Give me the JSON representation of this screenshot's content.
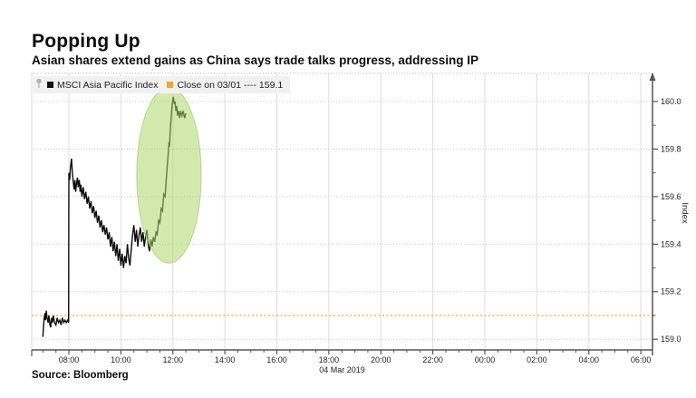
{
  "header": {
    "title": "Popping Up",
    "subtitle": "Asian shares extend gains as China says trade talks progress, addressing IP"
  },
  "legend": {
    "position": "top-left",
    "items": [
      {
        "icon": "pin-icon",
        "marker_color": "#111111",
        "label": "MSCI Asia Pacific Index"
      },
      {
        "marker_color": "#f5a623",
        "label": "Close on 03/01 ---- 159.1"
      }
    ]
  },
  "source": {
    "label": "Source: Bloomberg"
  },
  "chart_data": {
    "type": "line",
    "title": "Popping Up",
    "subtitle": "Asian shares extend gains as China says trade talks progress, addressing IP",
    "xlabel": "",
    "ylabel": "Index",
    "grid": true,
    "legend_position": "top-left",
    "x_axis": {
      "unit": "time",
      "range_hours": [
        6.57,
        30.45
      ],
      "minor_interval_hours": 0.5,
      "date_label": "04 Mar 2019",
      "ticks": [
        {
          "hour": 8,
          "label": "08:00"
        },
        {
          "hour": 10,
          "label": "10:00"
        },
        {
          "hour": 12,
          "label": "12:00"
        },
        {
          "hour": 14,
          "label": "14:00"
        },
        {
          "hour": 16,
          "label": "16:00"
        },
        {
          "hour": 18,
          "label": "18:00"
        },
        {
          "hour": 20,
          "label": "20:00"
        },
        {
          "hour": 22,
          "label": "22:00"
        },
        {
          "hour": 24,
          "label": "00:00"
        },
        {
          "hour": 26,
          "label": "02:00"
        },
        {
          "hour": 28,
          "label": "04:00"
        },
        {
          "hour": 30,
          "label": "06:00"
        }
      ]
    },
    "y_axis": {
      "label": "Index",
      "side": "right",
      "range": [
        158.955,
        160.118
      ],
      "minor_interval": 0.1,
      "ticks": [
        {
          "value": 159.0,
          "label": "159.0"
        },
        {
          "value": 159.2,
          "label": "159.2"
        },
        {
          "value": 159.4,
          "label": "159.4"
        },
        {
          "value": 159.6,
          "label": "159.6"
        },
        {
          "value": 159.8,
          "label": "159.8"
        },
        {
          "value": 160.0,
          "label": "160.0"
        }
      ]
    },
    "reference_line": {
      "label": "Close on 03/01",
      "value": 159.1,
      "color": "#f5a623",
      "style": "dotted"
    },
    "highlight_ellipse": {
      "center_hour": 11.85,
      "center_value": 159.69,
      "rx_hours": 1.24,
      "ry_value": 0.37,
      "fill": "#aed86e",
      "fill_opacity": 0.55,
      "stroke": "#8fc457"
    },
    "series": [
      {
        "name": "MSCI Asia Pacific Index",
        "color": "#0d0d0d",
        "points": [
          [
            7.0,
            159.01
          ],
          [
            7.02,
            159.05
          ],
          [
            7.05,
            159.09
          ],
          [
            7.08,
            159.11
          ],
          [
            7.1,
            159.08
          ],
          [
            7.13,
            159.12
          ],
          [
            7.16,
            159.09
          ],
          [
            7.2,
            159.07
          ],
          [
            7.23,
            159.1
          ],
          [
            7.27,
            159.06
          ],
          [
            7.3,
            159.05
          ],
          [
            7.33,
            159.09
          ],
          [
            7.37,
            159.07
          ],
          [
            7.4,
            159.1
          ],
          [
            7.45,
            159.07
          ],
          [
            7.5,
            159.06
          ],
          [
            7.55,
            159.09
          ],
          [
            7.6,
            159.07
          ],
          [
            7.65,
            159.08
          ],
          [
            7.7,
            159.06
          ],
          [
            7.75,
            159.09
          ],
          [
            7.8,
            159.07
          ],
          [
            7.85,
            159.08
          ],
          [
            7.9,
            159.07
          ],
          [
            7.95,
            159.08
          ],
          [
            7.99,
            159.07
          ],
          [
            8.0,
            159.7
          ],
          [
            8.03,
            159.67
          ],
          [
            8.06,
            159.72
          ],
          [
            8.1,
            159.76
          ],
          [
            8.13,
            159.71
          ],
          [
            8.16,
            159.67
          ],
          [
            8.2,
            159.63
          ],
          [
            8.23,
            159.67
          ],
          [
            8.26,
            159.62
          ],
          [
            8.3,
            159.66
          ],
          [
            8.33,
            159.68
          ],
          [
            8.36,
            159.64
          ],
          [
            8.4,
            159.67
          ],
          [
            8.43,
            159.62
          ],
          [
            8.46,
            159.65
          ],
          [
            8.5,
            159.6
          ],
          [
            8.55,
            159.64
          ],
          [
            8.6,
            159.59
          ],
          [
            8.65,
            159.62
          ],
          [
            8.7,
            159.57
          ],
          [
            8.75,
            159.6
          ],
          [
            8.8,
            159.55
          ],
          [
            8.85,
            159.58
          ],
          [
            8.9,
            159.53
          ],
          [
            8.95,
            159.56
          ],
          [
            9.0,
            159.51
          ],
          [
            9.05,
            159.54
          ],
          [
            9.1,
            159.49
          ],
          [
            9.15,
            159.52
          ],
          [
            9.2,
            159.47
          ],
          [
            9.25,
            159.5
          ],
          [
            9.3,
            159.45
          ],
          [
            9.35,
            159.48
          ],
          [
            9.4,
            159.44
          ],
          [
            9.45,
            159.47
          ],
          [
            9.5,
            159.42
          ],
          [
            9.55,
            159.45
          ],
          [
            9.6,
            159.39
          ],
          [
            9.65,
            159.43
          ],
          [
            9.7,
            159.37
          ],
          [
            9.75,
            159.41
          ],
          [
            9.8,
            159.35
          ],
          [
            9.85,
            159.4
          ],
          [
            9.9,
            159.33
          ],
          [
            9.95,
            159.38
          ],
          [
            10.0,
            159.31
          ],
          [
            10.05,
            159.36
          ],
          [
            10.1,
            159.3
          ],
          [
            10.15,
            159.35
          ],
          [
            10.2,
            159.32
          ],
          [
            10.25,
            159.4
          ],
          [
            10.3,
            159.34
          ],
          [
            10.35,
            159.31
          ],
          [
            10.4,
            159.38
          ],
          [
            10.45,
            159.44
          ],
          [
            10.5,
            159.48
          ],
          [
            10.55,
            159.41
          ],
          [
            10.6,
            159.46
          ],
          [
            10.65,
            159.39
          ],
          [
            10.7,
            159.44
          ],
          [
            10.75,
            159.47
          ],
          [
            10.8,
            159.41
          ],
          [
            10.85,
            159.45
          ],
          [
            10.9,
            159.39
          ],
          [
            10.95,
            159.43
          ],
          [
            11.0,
            159.46
          ],
          [
            11.05,
            159.4
          ],
          [
            11.1,
            159.37
          ],
          [
            11.15,
            159.42
          ],
          [
            11.2,
            159.39
          ],
          [
            11.25,
            159.43
          ],
          [
            11.3,
            159.41
          ],
          [
            11.35,
            159.45
          ],
          [
            11.4,
            159.44
          ],
          [
            11.45,
            159.5
          ],
          [
            11.5,
            159.49
          ],
          [
            11.55,
            159.55
          ],
          [
            11.6,
            159.54
          ],
          [
            11.65,
            159.61
          ],
          [
            11.7,
            159.6
          ],
          [
            11.75,
            159.68
          ],
          [
            11.78,
            159.72
          ],
          [
            11.82,
            159.78
          ],
          [
            11.85,
            159.83
          ],
          [
            11.87,
            159.81
          ],
          [
            11.9,
            159.88
          ],
          [
            11.93,
            159.93
          ],
          [
            11.96,
            159.97
          ],
          [
            11.99,
            160.0
          ],
          [
            12.02,
            160.02
          ],
          [
            12.05,
            159.99
          ],
          [
            12.08,
            160.0
          ],
          [
            12.12,
            159.96
          ],
          [
            12.15,
            159.98
          ],
          [
            12.18,
            159.94
          ],
          [
            12.22,
            159.96
          ],
          [
            12.26,
            159.93
          ],
          [
            12.3,
            159.96
          ],
          [
            12.35,
            159.94
          ],
          [
            12.4,
            159.96
          ],
          [
            12.45,
            159.93
          ],
          [
            12.5,
            159.95
          ]
        ]
      }
    ]
  }
}
